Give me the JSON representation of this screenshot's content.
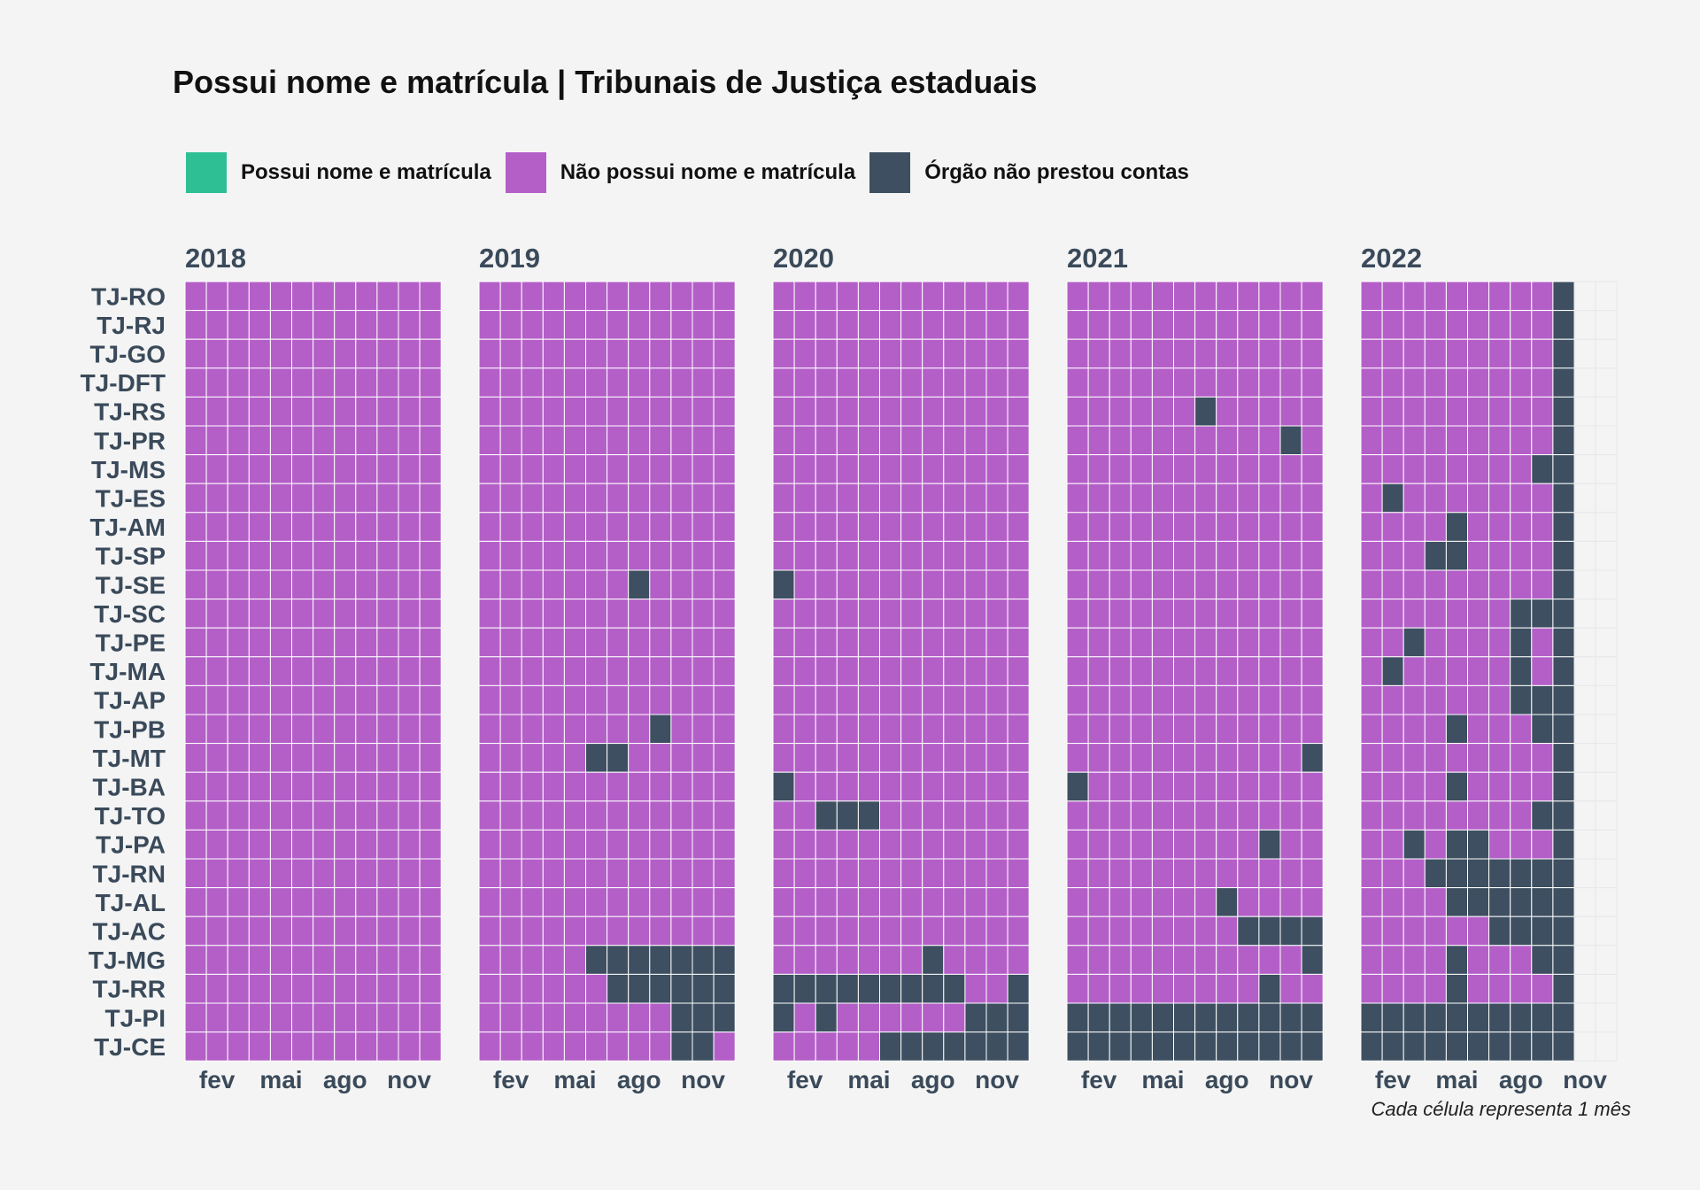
{
  "title": "Possui nome e matrícula | Tribunais de Justiça estaduais",
  "caption": "Cada célula representa 1 mês",
  "colors": {
    "possui": "#2ebf95",
    "nao_possui": "#b45fc8",
    "nao_prestou": "#3d4f60",
    "background": "#f4f4f4",
    "empty_grid": "#e8e8e8"
  },
  "legend": [
    {
      "label": "Possui nome e matrícula",
      "color": "#2ebf95"
    },
    {
      "label": "Não possui nome e matrícula",
      "color": "#b45fc8"
    },
    {
      "label": "Órgão não prestou contas",
      "color": "#3d4f60"
    }
  ],
  "chart_data": {
    "type": "heatmap",
    "title": "Possui nome e matrícula | Tribunais de Justiça estaduais",
    "panels": [
      "2018",
      "2019",
      "2020",
      "2021",
      "2022"
    ],
    "months_per_panel": 12,
    "x_tick_labels": [
      "fev",
      "mai",
      "ago",
      "nov"
    ],
    "x_tick_months": [
      2,
      5,
      8,
      11
    ],
    "rows": [
      "TJ-RO",
      "TJ-RJ",
      "TJ-GO",
      "TJ-DFT",
      "TJ-RS",
      "TJ-PR",
      "TJ-MS",
      "TJ-ES",
      "TJ-AM",
      "TJ-SP",
      "TJ-SE",
      "TJ-SC",
      "TJ-PE",
      "TJ-MA",
      "TJ-AP",
      "TJ-PB",
      "TJ-MT",
      "TJ-BA",
      "TJ-TO",
      "TJ-PA",
      "TJ-RN",
      "TJ-AL",
      "TJ-AC",
      "TJ-MG",
      "TJ-RR",
      "TJ-PI",
      "TJ-CE"
    ],
    "legend_key": {
      "P": "Possui nome e matrícula",
      "N": "Não possui nome e matrícula",
      "X": "Órgão não prestou contas",
      "-": "sem dado"
    },
    "values": {
      "2018": [
        "NNNNNNNNNNNN",
        "NNNNNNNNNNNN",
        "NNNNNNNNNNNN",
        "NNNNNNNNNNNN",
        "NNNNNNNNNNNN",
        "NNNNNNNNNNNN",
        "NNNNNNNNNNNN",
        "NNNNNNNNNNNN",
        "NNNNNNNNNNNN",
        "NNNNNNNNNNNN",
        "NNNNNNNNNNNN",
        "NNNNNNNNNNNN",
        "NNNNNNNNNNNN",
        "NNNNNNNNNNNN",
        "NNNNNNNNNNNN",
        "NNNNNNNNNNNN",
        "NNNNNNNNNNNN",
        "NNNNNNNNNNNN",
        "NNNNNNNNNNNN",
        "NNNNNNNNNNNN",
        "NNNNNNNNNNNN",
        "NNNNNNNNNNNN",
        "NNNNNNNNNNNN",
        "NNNNNNNNNNNN",
        "NNNNNNNNNNNN",
        "NNNNNNNNNNNN",
        "NNNNNNNNNNNN"
      ],
      "2019": [
        "NNNNNNNNNNNN",
        "NNNNNNNNNNNN",
        "NNNNNNNNNNNN",
        "NNNNNNNNNNNN",
        "NNNNNNNNNNNN",
        "NNNNNNNNNNNN",
        "NNNNNNNNNNNN",
        "NNNNNNNNNNNN",
        "NNNNNNNNNNNN",
        "NNNNNNNNNNNN",
        "NNNNNNNXNNNN",
        "NNNNNNNNNNNN",
        "NNNNNNNNNNNN",
        "NNNNNNNNNNNN",
        "NNNNNNNNNNNN",
        "NNNNNNNNXNNN",
        "NNNNNXXNNNNN",
        "NNNNNNNNNNNN",
        "NNNNNNNNNNNN",
        "NNNNNNNNNNNN",
        "NNNNNNNNNNNN",
        "NNNNNNNNNNNN",
        "NNNNNNNNNNNN",
        "NNNNNXXXXXXX",
        "NNNNNNXXXXXX",
        "NNNNNNNNNXXX",
        "NNNNNNNNNXXN"
      ],
      "2020": [
        "NNNNNNNNNNNN",
        "NNNNNNNNNNNN",
        "NNNNNNNNNNNN",
        "NNNNNNNNNNNN",
        "NNNNNNNNNNNN",
        "NNNNNNNNNNNN",
        "NNNNNNNNNNNN",
        "NNNNNNNNNNNN",
        "NNNNNNNNNNNN",
        "NNNNNNNNNNNN",
        "XNNNNNNNNNNN",
        "NNNNNNNNNNNN",
        "NNNNNNNNNNNN",
        "NNNNNNNNNNNN",
        "NNNNNNNNNNNN",
        "NNNNNNNNNNNN",
        "NNNNNNNNNNNN",
        "XNNNNNNNNNNN",
        "NNXXXNNNNNNN",
        "NNNNNNNNNNNN",
        "NNNNNNNNNNNN",
        "NNNNNNNNNNNN",
        "NNNNNNNNNNNN",
        "NNNNNNNXNNNN",
        "XXXXXXXXXNNX",
        "XNXNNNNNNXXX",
        "NNNNNXXXXXXX"
      ],
      "2021": [
        "NNNNNNNNNNNN",
        "NNNNNNNNNNNN",
        "NNNNNNNNNNNN",
        "NNNNNNNNNNNN",
        "NNNNNNXNNNNN",
        "NNNNNNNNNNXN",
        "NNNNNNNNNNNN",
        "NNNNNNNNNNNN",
        "NNNNNNNNNNNN",
        "NNNNNNNNNNNN",
        "NNNNNNNNNNNN",
        "NNNNNNNNNNNN",
        "NNNNNNNNNNNN",
        "NNNNNNNNNNNN",
        "NNNNNNNNNNNN",
        "NNNNNNNNNNNN",
        "NNNNNNNNNNNX",
        "XNNNNNNNNNNN",
        "NNNNNNNNNNNN",
        "NNNNNNNNNXNN",
        "NNNNNNNNNNNN",
        "NNNNNNNXNNNN",
        "NNNNNNNNXXXX",
        "NNNNNNNNNNNX",
        "NNNNNNNNNXNN",
        "XXXXXXXXXXXX",
        "XXXXXXXXXXXX"
      ],
      "2022": [
        "NNNNNNNNNX--",
        "NNNNNNNNNX--",
        "NNNNNNNNNX--",
        "NNNNNNNNNX--",
        "NNNNNNNNNX--",
        "NNNNNNNNNX--",
        "NNNNNNNNXX--",
        "NXNNNNNNNX--",
        "NNNNXNNNNX--",
        "NNNXXNNNNX--",
        "NNNNNNNNNX--",
        "NNNNNNNXXX--",
        "NNXNNNNXNX--",
        "NXNNNNNXNX--",
        "NNNNNNNXXX--",
        "NNNNXNNNXX--",
        "NNNNNNNNNX--",
        "NNNNXNNNNX--",
        "NNNNNNNNXX--",
        "NNXNXXNNNX--",
        "NNNXXXXXXX--",
        "NNNNXXXXXX--",
        "NNNNNNXXXX--",
        "NNNNXNNNXX--",
        "NNNNXNNNNX--",
        "XXXXXXXXXX--",
        "XXXXXXXXXX--"
      ]
    }
  }
}
